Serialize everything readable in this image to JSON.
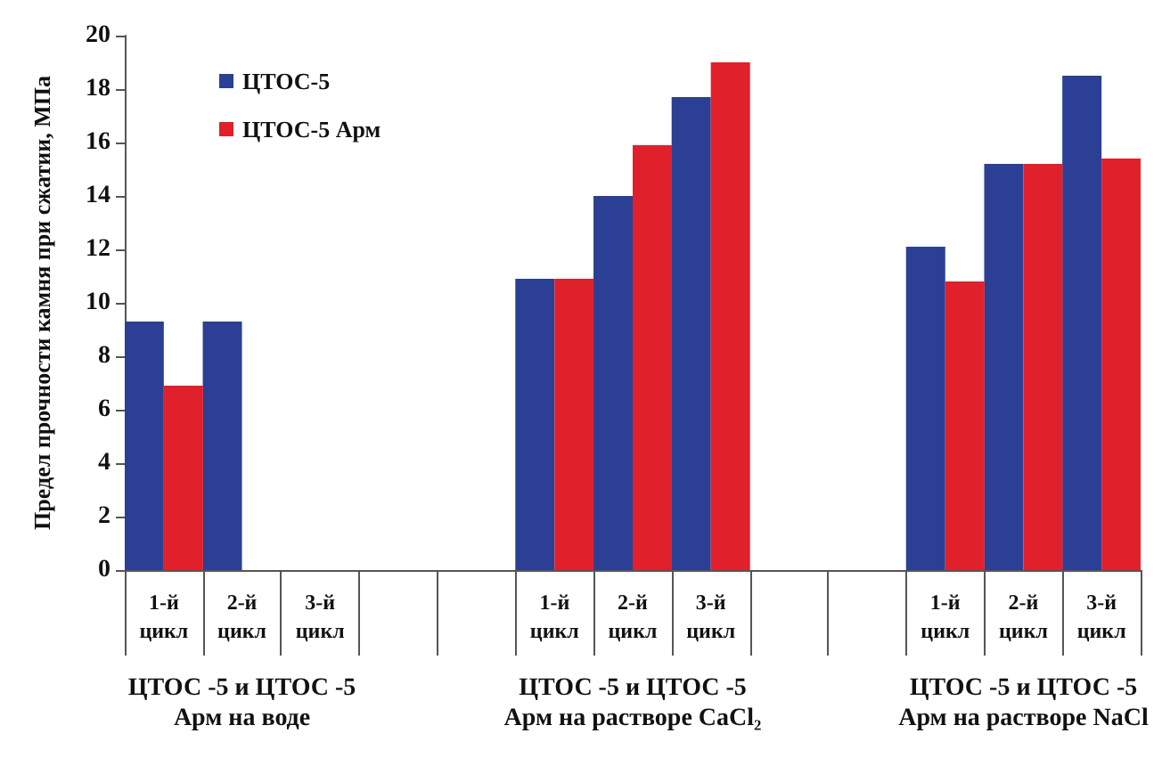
{
  "chart_data": {
    "type": "bar",
    "ylabel": "Предел прочности камня при сжатии, МПа",
    "categories": [
      "1-й цикл",
      "2-й цикл",
      "3-й цикл",
      null,
      null,
      "1-й цикл",
      "2-й цикл",
      "3-й цикл",
      null,
      null,
      "1-й цикл",
      "2-й цикл",
      "3-й цикл"
    ],
    "series": [
      {
        "name": "ЦТОС-5",
        "color": "#2b3f94",
        "values": [
          9.3,
          9.3,
          null,
          null,
          null,
          10.9,
          14.0,
          17.7,
          null,
          null,
          12.1,
          15.2,
          18.5
        ]
      },
      {
        "name": "ЦТОС-5 Арм",
        "color": "#e0202a",
        "values": [
          6.9,
          null,
          null,
          null,
          null,
          10.9,
          15.9,
          19.0,
          null,
          null,
          10.8,
          15.2,
          15.4
        ]
      }
    ],
    "ylim": [
      0,
      20
    ],
    "yticks": [
      0,
      2,
      4,
      6,
      8,
      10,
      12,
      14,
      16,
      18,
      20
    ],
    "grid": false,
    "legend": "top left",
    "annotations": [
      "ЦТОС -5 и ЦТОС -5\nАрм на воде",
      "ЦТОС -5 и ЦТОС -5\nАрм на растворе CaCl₂",
      "ЦТОС -5 и ЦТОС -5\nАрм на растворе NaCl"
    ]
  }
}
